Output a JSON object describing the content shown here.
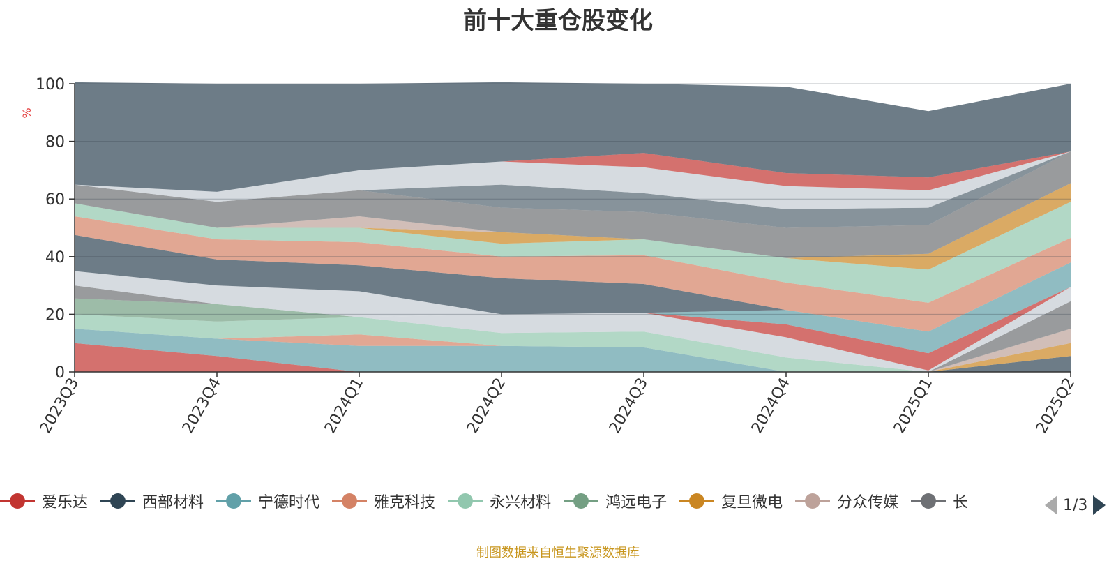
{
  "chart_data": {
    "type": "area",
    "stacked": true,
    "title": "前十大重仓股变化",
    "ylabel": "%",
    "ylim": [
      0,
      100
    ],
    "yticks": [
      0,
      20,
      40,
      60,
      80,
      100
    ],
    "x": [
      "2023Q3",
      "2023Q4",
      "2024Q1",
      "2024Q2",
      "2024Q3",
      "2024Q4",
      "2025Q1",
      "2025Q2"
    ],
    "series": [
      {
        "name": "爱乐达",
        "color": "#c23531",
        "values": [
          10,
          5.5,
          0,
          0,
          0,
          0,
          0,
          0
        ]
      },
      {
        "name": "宁德时代",
        "color": "#61a0a8",
        "values": [
          5,
          6,
          9,
          9,
          8.5,
          0,
          0,
          0
        ]
      },
      {
        "name": "雅克科技",
        "color": "#d48265",
        "values": [
          0,
          0,
          4,
          0,
          0,
          0,
          0,
          0
        ]
      },
      {
        "name": "永兴材料",
        "color": "#91c7ae",
        "values": [
          5,
          6,
          6,
          4.5,
          5.5,
          5,
          0,
          0
        ]
      },
      {
        "name": "西部材料",
        "color": "#2f4554",
        "values": [
          0,
          0,
          0,
          0,
          0,
          0,
          0,
          5.5
        ]
      },
      {
        "name": "复旦微电",
        "color": "#ca8622",
        "values": [
          0,
          0,
          0,
          0,
          0,
          0,
          0,
          4.5
        ]
      },
      {
        "name": "分众传媒",
        "color": "#bda29a",
        "values": [
          0,
          0,
          0,
          0,
          0,
          0,
          0,
          5
        ]
      },
      {
        "name": "长",
        "color": "#6e7074",
        "values": [
          0,
          0,
          0,
          0,
          0,
          0,
          0,
          9.5
        ]
      },
      {
        "name": "",
        "color": "#c4ccd3",
        "values": [
          0,
          0,
          0,
          6.5,
          6.5,
          7,
          0.5,
          5
        ]
      },
      {
        "name": "",
        "color": "#c23531",
        "values": [
          0,
          0,
          0,
          0,
          0,
          4.5,
          6,
          0
        ]
      },
      {
        "name": "",
        "color": "#749f83",
        "values": [
          5.5,
          6,
          0,
          0,
          0,
          0,
          0,
          0
        ]
      },
      {
        "name": "",
        "color": "#6e7074",
        "values": [
          4.5,
          0,
          0,
          0,
          0,
          0,
          0,
          0
        ]
      },
      {
        "name": "",
        "color": "#c4ccd3",
        "values": [
          5,
          6.5,
          9,
          0,
          0,
          0,
          0,
          0
        ]
      },
      {
        "name": "",
        "color": "#61a0a8",
        "values": [
          0,
          0,
          0,
          0,
          0,
          5,
          7.5,
          8.5
        ]
      },
      {
        "name": "",
        "color": "#2f4554",
        "values": [
          12.5,
          9,
          9,
          12.5,
          10,
          0,
          0,
          0
        ]
      },
      {
        "name": "",
        "color": "#d48265",
        "values": [
          6.5,
          7,
          8,
          7.5,
          10,
          9.5,
          10,
          8.5
        ]
      },
      {
        "name": "",
        "color": "#91c7ae",
        "values": [
          4.5,
          4,
          5,
          4.5,
          5.5,
          8.5,
          11.5,
          12.5
        ]
      },
      {
        "name": "",
        "color": "#ca8622",
        "values": [
          0,
          0,
          0,
          4,
          0,
          0,
          5.5,
          6.5
        ]
      },
      {
        "name": "",
        "color": "#bda29a",
        "values": [
          0,
          0,
          4,
          0,
          0,
          0,
          0,
          0
        ]
      },
      {
        "name": "",
        "color": "#6e7074",
        "values": [
          6.5,
          9,
          9,
          8.5,
          9.5,
          10.5,
          10,
          11
        ]
      },
      {
        "name": "",
        "color": "#546570",
        "values": [
          0,
          0,
          0,
          8,
          6.5,
          6.5,
          6,
          0
        ]
      },
      {
        "name": "",
        "color": "#c4ccd3",
        "values": [
          0,
          3.5,
          7,
          8,
          9,
          8,
          6,
          0
        ]
      },
      {
        "name": "",
        "color": "#c23531",
        "values": [
          0,
          0,
          0,
          0,
          5,
          4.5,
          4.5,
          0
        ]
      },
      {
        "name": "",
        "color": "#2f4554",
        "values": [
          35.5,
          37.5,
          30,
          27.5,
          24,
          30,
          23,
          23.5
        ]
      }
    ],
    "grid": true,
    "legend_position": "bottom"
  },
  "legend": {
    "items": [
      {
        "label": "爱乐达",
        "color": "#c23531"
      },
      {
        "label": "西部材料",
        "color": "#2f4554"
      },
      {
        "label": "宁德时代",
        "color": "#61a0a8"
      },
      {
        "label": "雅克科技",
        "color": "#d48265"
      },
      {
        "label": "永兴材料",
        "color": "#91c7ae"
      },
      {
        "label": "鸿远电子",
        "color": "#749f83"
      },
      {
        "label": "复旦微电",
        "color": "#ca8622"
      },
      {
        "label": "分众传媒",
        "color": "#bda29a"
      },
      {
        "label": "长",
        "color": "#6e7074"
      }
    ],
    "pager": "1/3"
  },
  "source_note": "制图数据来自恒生聚源数据库"
}
